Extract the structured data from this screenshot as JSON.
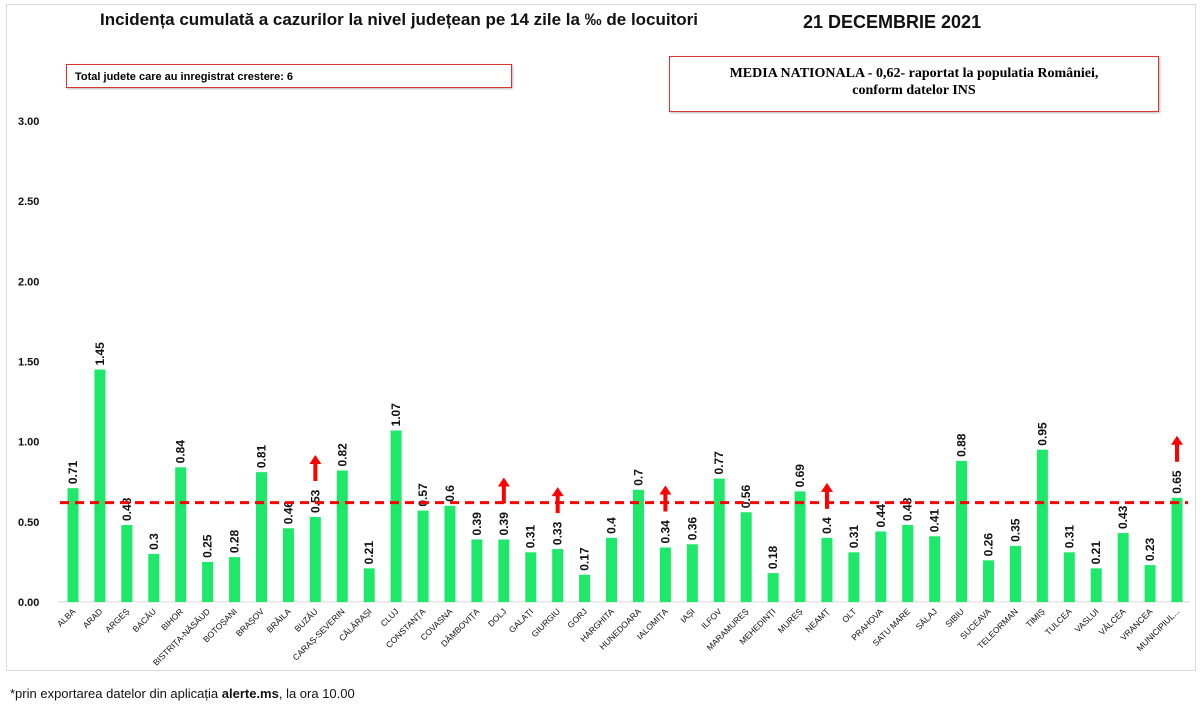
{
  "title": "Incidența cumulată a cazurilor la nivel județean pe 14 zile la ‰ de locuitori",
  "date": "21 DECEMBRIE 2021",
  "increase_box": "Total judete care au inregistrat crestere: 6",
  "national_box": {
    "line1": "MEDIA NATIONALA - 0,62-  raportat la populatia României,",
    "line2": "conform datelor INS"
  },
  "footer": {
    "pre": "*prin exportarea  datelor din aplicația ",
    "bold": "alerte.ms",
    "post": ", la ora 10.00"
  },
  "chart_data": {
    "type": "bar",
    "title": "Incidența cumulată a cazurilor la nivel județean pe 14 zile la ‰ de locuitori",
    "xlabel": "",
    "ylabel": "",
    "ylim": [
      0,
      3
    ],
    "yticks": [
      "0.00",
      "0.50",
      "1.00",
      "1.50",
      "2.00",
      "2.50",
      "3.00"
    ],
    "grid": false,
    "bar_color": "#1ee86a",
    "reference_line": {
      "value": 0.62,
      "color": "#ff0000",
      "style": "dashed"
    },
    "increase_arrow_color": "#ff0000",
    "categories": [
      "ALBA",
      "ARAD",
      "ARGEȘ",
      "BACĂU",
      "BIHOR",
      "BISTRIȚA-NĂSĂUD",
      "BOTOȘANI",
      "BRAȘOV",
      "BRĂILA",
      "BUZĂU",
      "CARAȘ-SEVERIN",
      "CĂLĂRAȘI",
      "CLUJ",
      "CONSTANȚA",
      "COVASNA",
      "DÂMBOVIȚA",
      "DOLJ",
      "GALAȚI",
      "GIURGIU",
      "GORJ",
      "HARGHITA",
      "HUNEDOARA",
      "IALOMIȚA",
      "IAȘI",
      "ILFOV",
      "MARAMUREȘ",
      "MEHEDINȚI",
      "MUREȘ",
      "NEAMȚ",
      "OLT",
      "PRAHOVA",
      "SATU MARE",
      "SĂLAJ",
      "SIBIU",
      "SUCEAVA",
      "TELEORMAN",
      "TIMIȘ",
      "TULCEA",
      "VASLUI",
      "VÂLCEA",
      "VRANCEA",
      "MUNICIPIUL..."
    ],
    "values": [
      0.71,
      1.45,
      0.48,
      0.3,
      0.84,
      0.25,
      0.28,
      0.81,
      0.46,
      0.53,
      0.82,
      0.21,
      1.07,
      0.57,
      0.6,
      0.39,
      0.39,
      0.31,
      0.33,
      0.17,
      0.4,
      0.7,
      0.34,
      0.36,
      0.77,
      0.56,
      0.18,
      0.69,
      0.4,
      0.31,
      0.44,
      0.48,
      0.41,
      0.88,
      0.26,
      0.35,
      0.95,
      0.31,
      0.21,
      0.43,
      0.23,
      0.65
    ],
    "increased": [
      "BUZĂU",
      "DOLJ",
      "GIURGIU",
      "IALOMIȚA",
      "NEAMȚ",
      "MUNICIPIUL..."
    ]
  }
}
